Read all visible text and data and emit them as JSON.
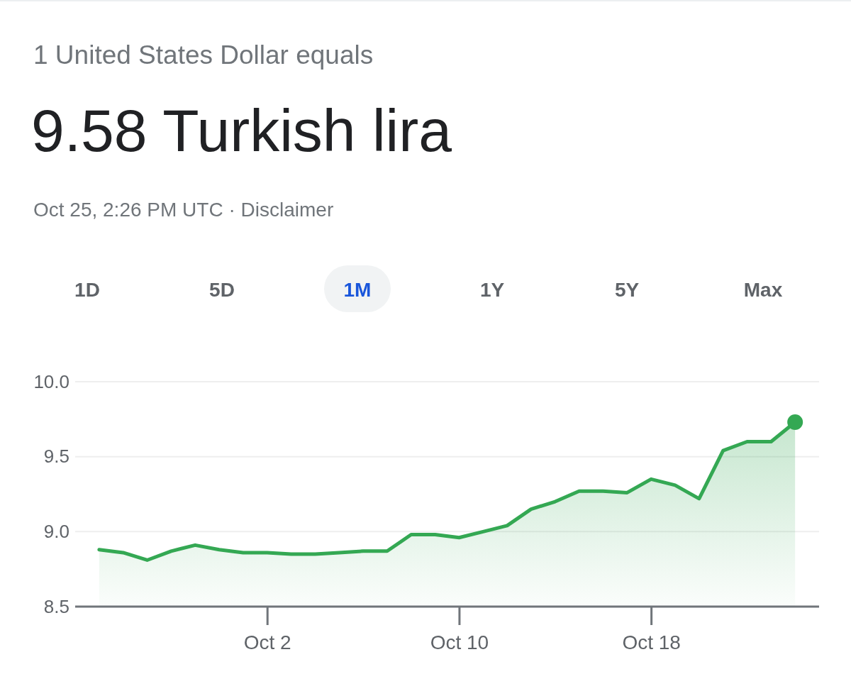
{
  "chart_data": {
    "type": "area",
    "subtitle": "1 United States Dollar equals",
    "title": "9.58 Turkish lira",
    "annotations": [
      "Oct 25, 2:26 PM UTC · Disclaimer",
      "1D",
      "5D",
      "1M",
      "1Y",
      "5Y",
      "Max"
    ],
    "x": [
      "--09-25",
      "--09-26",
      "--09-27",
      "--09-28",
      "--09-29",
      "--09-30",
      "--10-01",
      "--10-02",
      "--10-03",
      "--10-04",
      "--10-05",
      "--10-06",
      "--10-07",
      "--10-08",
      "--10-09",
      "--10-10",
      "--10-11",
      "--10-12",
      "--10-13",
      "--10-14",
      "--10-15",
      "--10-16",
      "--10-17",
      "--10-18",
      "--10-19",
      "--10-20",
      "--10-21",
      "--10-22",
      "--10-23",
      "--10-24"
    ],
    "series": [
      {
        "color": "#34a853",
        "values": [
          8.88,
          8.86,
          8.81,
          8.87,
          8.91,
          8.88,
          8.86,
          8.86,
          8.85,
          8.85,
          8.86,
          8.87,
          8.87,
          8.98,
          8.98,
          8.96,
          9.0,
          9.04,
          9.15,
          9.2,
          9.27,
          9.27,
          9.26,
          9.35,
          9.31,
          9.22,
          9.54,
          9.6,
          9.6,
          9.73
        ]
      },
      {
        "type": "scatter",
        "color": "#34a853",
        "marker": "circle",
        "x": [
          "--10-24"
        ],
        "values": [
          9.73
        ]
      }
    ],
    "xlim": [
      "--09-24",
      "--10-25"
    ],
    "xticks": [
      {
        "value": "--10-02",
        "label": "Oct 2"
      },
      {
        "value": "--10-10",
        "label": "Oct 10"
      },
      {
        "value": "--10-18",
        "label": "Oct 18"
      }
    ],
    "ylim": [
      8.5,
      10.0
    ],
    "yticks": [
      {
        "value": 8.5,
        "label": "8.5"
      },
      {
        "value": 9.0,
        "label": "9.0"
      },
      {
        "value": 9.5,
        "label": "9.5"
      },
      {
        "value": 10.0,
        "label": "10.0"
      }
    ],
    "grid": "y"
  }
}
